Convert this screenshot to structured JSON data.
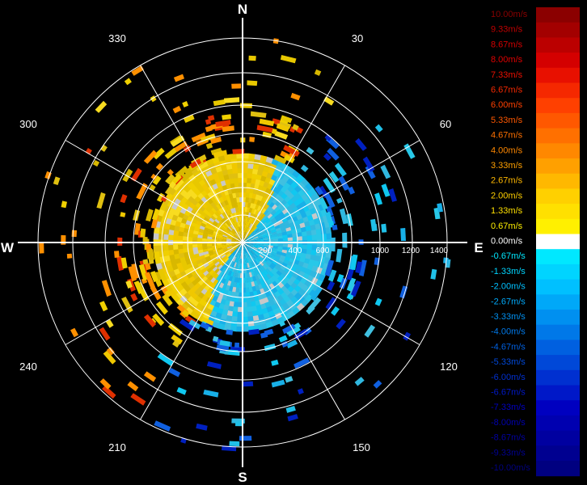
{
  "chart_data": {
    "type": "heatmap",
    "title": "",
    "compass": [
      "N",
      "E",
      "S",
      "W"
    ],
    "angle_labels": [
      "30",
      "60",
      "120",
      "150",
      "210",
      "240",
      "300",
      "330"
    ],
    "range_labels": [
      "200",
      "400",
      "600",
      "1000",
      "1200",
      "1400"
    ],
    "legend": {
      "entries": [
        {
          "label": "10.00m/s",
          "color": "#8b0000",
          "text_color": "#8b0000"
        },
        {
          "label": "9.33m/s",
          "color": "#a30000",
          "text_color": "#c00000"
        },
        {
          "label": "8.67m/s",
          "color": "#bb0000",
          "text_color": "#d40000"
        },
        {
          "label": "8.00m/s",
          "color": "#d40000",
          "text_color": "#e00000"
        },
        {
          "label": "7.33m/s",
          "color": "#e81000",
          "text_color": "#ec1000"
        },
        {
          "label": "6.67m/s",
          "color": "#f52800",
          "text_color": "#f52800"
        },
        {
          "label": "6.00m/s",
          "color": "#ff4000",
          "text_color": "#ff4000"
        },
        {
          "label": "5.33m/s",
          "color": "#ff5800",
          "text_color": "#ff5800"
        },
        {
          "label": "4.67m/s",
          "color": "#ff7000",
          "text_color": "#ff7000"
        },
        {
          "label": "4.00m/s",
          "color": "#ff8800",
          "text_color": "#ff8800"
        },
        {
          "label": "3.33m/s",
          "color": "#ffa000",
          "text_color": "#ffa000"
        },
        {
          "label": "2.67m/s",
          "color": "#ffb800",
          "text_color": "#ffb800"
        },
        {
          "label": "2.00m/s",
          "color": "#ffd000",
          "text_color": "#ffd000"
        },
        {
          "label": "1.33m/s",
          "color": "#ffe000",
          "text_color": "#ffe000"
        },
        {
          "label": "0.67m/s",
          "color": "#fff000",
          "text_color": "#fff000"
        },
        {
          "label": "0.00m/s",
          "color": "#ffffff",
          "text_color": "#ffffff"
        },
        {
          "label": "-0.67m/s",
          "color": "#00e8ff",
          "text_color": "#00e8ff"
        },
        {
          "label": "-1.33m/s",
          "color": "#00d4ff",
          "text_color": "#00d4ff"
        },
        {
          "label": "-2.00m/s",
          "color": "#00c0ff",
          "text_color": "#00c0ff"
        },
        {
          "label": "-2.67m/s",
          "color": "#00a8f8",
          "text_color": "#00a8f8"
        },
        {
          "label": "-3.33m/s",
          "color": "#0090f0",
          "text_color": "#0090f0"
        },
        {
          "label": "-4.00m/s",
          "color": "#0078e8",
          "text_color": "#0078e8"
        },
        {
          "label": "-4.67m/s",
          "color": "#0060e0",
          "text_color": "#0060e0"
        },
        {
          "label": "-5.33m/s",
          "color": "#0048d8",
          "text_color": "#0048d8"
        },
        {
          "label": "-6.00m/s",
          "color": "#0030d0",
          "text_color": "#0030d0"
        },
        {
          "label": "-6.67m/s",
          "color": "#0018c8",
          "text_color": "#0018c8"
        },
        {
          "label": "-7.33m/s",
          "color": "#0000c0",
          "text_color": "#0000c0"
        },
        {
          "label": "-8.00m/s",
          "color": "#0000b0",
          "text_color": "#0000b0"
        },
        {
          "label": "-8.67m/s",
          "color": "#0000a0",
          "text_color": "#0000a0"
        },
        {
          "label": "-9.33m/s",
          "color": "#000090",
          "text_color": "#000090"
        },
        {
          "label": "-10.00m/s",
          "color": "#000080",
          "text_color": "#000080"
        }
      ]
    },
    "grid": true
  }
}
